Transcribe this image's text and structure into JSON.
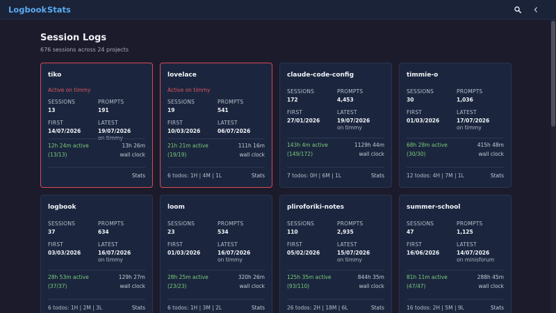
{
  "header": {
    "brand": "Logbook",
    "nav_stats": "Stats",
    "search_icon": "search-icon",
    "collapse_icon": "chevron-left-icon"
  },
  "page": {
    "title": "Session Logs",
    "subtitle": "676 sessions across 24 projects"
  },
  "labels": {
    "sessions": "SESSIONS",
    "prompts": "PROMPTS",
    "first": "FIRST",
    "latest": "LATEST",
    "wall_clock": "wall clock",
    "stats_link": "Stats"
  },
  "cards": [
    {
      "name": "tiko",
      "active": "Active on timmy",
      "sessions": "13",
      "prompts": "191",
      "first": "14/07/2026",
      "latest": "19/07/2026",
      "latest_host": "on timmy",
      "active_time": "12h 24m active",
      "active_ratio": "(13/13)",
      "wall_time": "13h 26m",
      "todos": ""
    },
    {
      "name": "lovelace",
      "active": "Active on timmy",
      "sessions": "19",
      "prompts": "541",
      "first": "10/03/2026",
      "latest": "06/07/2026",
      "latest_host": "",
      "active_time": "21h 21m active",
      "active_ratio": "(19/19)",
      "wall_time": "111h 16m",
      "todos": "6 todos: 1H | 4M | 1L"
    },
    {
      "name": "claude-code-config",
      "active": "",
      "sessions": "172",
      "prompts": "4,453",
      "first": "27/01/2026",
      "latest": "19/07/2026",
      "latest_host": "on timmy",
      "active_time": "143h 4m active",
      "active_ratio": "(149/172)",
      "wall_time": "1129h 44m",
      "todos": "7 todos: 0H | 6M | 1L"
    },
    {
      "name": "timmie-o",
      "active": "",
      "sessions": "30",
      "prompts": "1,036",
      "first": "01/03/2026",
      "latest": "17/07/2026",
      "latest_host": "on timmy",
      "active_time": "68h 28m active",
      "active_ratio": "(30/30)",
      "wall_time": "415h 48m",
      "todos": "12 todos: 4H | 7M | 1L"
    },
    {
      "name": "logbook",
      "active": "",
      "sessions": "37",
      "prompts": "634",
      "first": "03/03/2026",
      "latest": "16/07/2026",
      "latest_host": "on timmy",
      "active_time": "28h 53m active",
      "active_ratio": "(37/37)",
      "wall_time": "129h 27m",
      "todos": "6 todos: 1H | 2M | 3L"
    },
    {
      "name": "loom",
      "active": "",
      "sessions": "23",
      "prompts": "534",
      "first": "01/03/2026",
      "latest": "16/07/2026",
      "latest_host": "on timmy",
      "active_time": "28h 25m active",
      "active_ratio": "(23/23)",
      "wall_time": "320h 26m",
      "todos": "6 todos: 1H | 3M | 2L"
    },
    {
      "name": "pliroforiki-notes",
      "active": "",
      "sessions": "110",
      "prompts": "2,935",
      "first": "05/02/2026",
      "latest": "15/07/2026",
      "latest_host": "on timmy",
      "active_time": "125h 35m active",
      "active_ratio": "(93/110)",
      "wall_time": "844h 35m",
      "todos": "26 todos: 2H | 18M | 6L"
    },
    {
      "name": "summer-school",
      "active": "",
      "sessions": "47",
      "prompts": "1,125",
      "first": "16/06/2026",
      "latest": "14/07/2026",
      "latest_host": "on minisforum",
      "active_time": "81h 11m active",
      "active_ratio": "(47/47)",
      "wall_time": "288h 45m",
      "todos": "16 todos: 2H | 5M | 9L"
    }
  ]
}
